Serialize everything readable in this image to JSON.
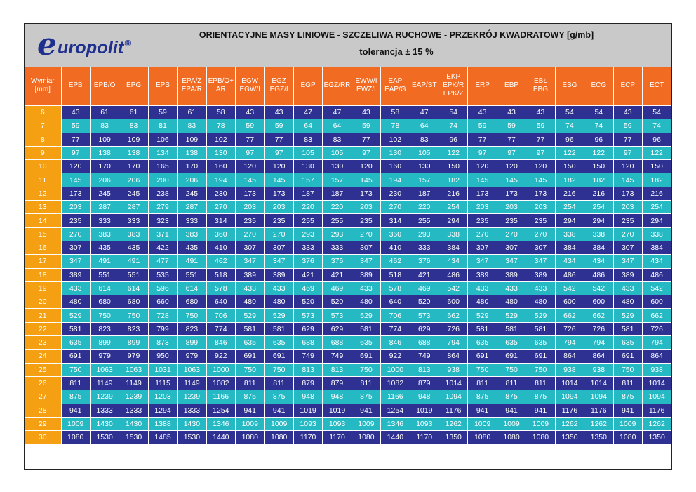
{
  "logo": {
    "letter": "e",
    "word": "uropolit",
    "mark": "®"
  },
  "title": "ORIENTACYJNE MASY LINIOWE - SZCZELIWA RUCHOWE - PRZEKRÓJ KWADRATOWY [g/mb]",
  "subtitle": "tolerancja ± 15 %",
  "colors": {
    "header_bg": "#c9c9c9",
    "column_header": "#f26b22",
    "dimension_cell": "#f5a012",
    "row_dark": "#2e3192",
    "row_light": "#25b9c4",
    "brand": "#1f2f8e"
  },
  "table": {
    "columns": [
      "Wymiar\n[mm]",
      "EPB",
      "EPB/O",
      "EPG",
      "EPS",
      "EPA/Z\nEPA/R",
      "EPB/O+\nAR",
      "EGW\nEGW/I",
      "EGZ\nEGZ/I",
      "EGP",
      "EGZ/RR",
      "EWW/I\nEWZ/I",
      "EAP\nEAP/G",
      "EAP/ST",
      "EKP\nEPK/R\nEPK/Z",
      "ERP",
      "EBP",
      "EBŁ\nEBG",
      "ESG",
      "ECG",
      "ECP",
      "ECT"
    ],
    "rows": [
      [
        "6",
        "43",
        "61",
        "61",
        "59",
        "61",
        "58",
        "43",
        "43",
        "47",
        "47",
        "43",
        "58",
        "47",
        "54",
        "43",
        "43",
        "43",
        "54",
        "54",
        "43",
        "54"
      ],
      [
        "7",
        "59",
        "83",
        "83",
        "81",
        "83",
        "78",
        "59",
        "59",
        "64",
        "64",
        "59",
        "78",
        "64",
        "74",
        "59",
        "59",
        "59",
        "74",
        "74",
        "59",
        "74"
      ],
      [
        "8",
        "77",
        "109",
        "109",
        "106",
        "109",
        "102",
        "77",
        "77",
        "83",
        "83",
        "77",
        "102",
        "83",
        "96",
        "77",
        "77",
        "77",
        "96",
        "96",
        "77",
        "96"
      ],
      [
        "9",
        "97",
        "138",
        "138",
        "134",
        "138",
        "130",
        "97",
        "97",
        "105",
        "105",
        "97",
        "130",
        "105",
        "122",
        "97",
        "97",
        "97",
        "122",
        "122",
        "97",
        "122"
      ],
      [
        "10",
        "120",
        "170",
        "170",
        "165",
        "170",
        "160",
        "120",
        "120",
        "130",
        "130",
        "120",
        "160",
        "130",
        "150",
        "120",
        "120",
        "120",
        "150",
        "150",
        "120",
        "150"
      ],
      [
        "11",
        "145",
        "206",
        "206",
        "200",
        "206",
        "194",
        "145",
        "145",
        "157",
        "157",
        "145",
        "194",
        "157",
        "182",
        "145",
        "145",
        "145",
        "182",
        "182",
        "145",
        "182"
      ],
      [
        "12",
        "173",
        "245",
        "245",
        "238",
        "245",
        "230",
        "173",
        "173",
        "187",
        "187",
        "173",
        "230",
        "187",
        "216",
        "173",
        "173",
        "173",
        "216",
        "216",
        "173",
        "216"
      ],
      [
        "13",
        "203",
        "287",
        "287",
        "279",
        "287",
        "270",
        "203",
        "203",
        "220",
        "220",
        "203",
        "270",
        "220",
        "254",
        "203",
        "203",
        "203",
        "254",
        "254",
        "203",
        "254"
      ],
      [
        "14",
        "235",
        "333",
        "333",
        "323",
        "333",
        "314",
        "235",
        "235",
        "255",
        "255",
        "235",
        "314",
        "255",
        "294",
        "235",
        "235",
        "235",
        "294",
        "294",
        "235",
        "294"
      ],
      [
        "15",
        "270",
        "383",
        "383",
        "371",
        "383",
        "360",
        "270",
        "270",
        "293",
        "293",
        "270",
        "360",
        "293",
        "338",
        "270",
        "270",
        "270",
        "338",
        "338",
        "270",
        "338"
      ],
      [
        "16",
        "307",
        "435",
        "435",
        "422",
        "435",
        "410",
        "307",
        "307",
        "333",
        "333",
        "307",
        "410",
        "333",
        "384",
        "307",
        "307",
        "307",
        "384",
        "384",
        "307",
        "384"
      ],
      [
        "17",
        "347",
        "491",
        "491",
        "477",
        "491",
        "462",
        "347",
        "347",
        "376",
        "376",
        "347",
        "462",
        "376",
        "434",
        "347",
        "347",
        "347",
        "434",
        "434",
        "347",
        "434"
      ],
      [
        "18",
        "389",
        "551",
        "551",
        "535",
        "551",
        "518",
        "389",
        "389",
        "421",
        "421",
        "389",
        "518",
        "421",
        "486",
        "389",
        "389",
        "389",
        "486",
        "486",
        "389",
        "486"
      ],
      [
        "19",
        "433",
        "614",
        "614",
        "596",
        "614",
        "578",
        "433",
        "433",
        "469",
        "469",
        "433",
        "578",
        "469",
        "542",
        "433",
        "433",
        "433",
        "542",
        "542",
        "433",
        "542"
      ],
      [
        "20",
        "480",
        "680",
        "680",
        "660",
        "680",
        "640",
        "480",
        "480",
        "520",
        "520",
        "480",
        "640",
        "520",
        "600",
        "480",
        "480",
        "480",
        "600",
        "600",
        "480",
        "600"
      ],
      [
        "21",
        "529",
        "750",
        "750",
        "728",
        "750",
        "706",
        "529",
        "529",
        "573",
        "573",
        "529",
        "706",
        "573",
        "662",
        "529",
        "529",
        "529",
        "662",
        "662",
        "529",
        "662"
      ],
      [
        "22",
        "581",
        "823",
        "823",
        "799",
        "823",
        "774",
        "581",
        "581",
        "629",
        "629",
        "581",
        "774",
        "629",
        "726",
        "581",
        "581",
        "581",
        "726",
        "726",
        "581",
        "726"
      ],
      [
        "23",
        "635",
        "899",
        "899",
        "873",
        "899",
        "846",
        "635",
        "635",
        "688",
        "688",
        "635",
        "846",
        "688",
        "794",
        "635",
        "635",
        "635",
        "794",
        "794",
        "635",
        "794"
      ],
      [
        "24",
        "691",
        "979",
        "979",
        "950",
        "979",
        "922",
        "691",
        "691",
        "749",
        "749",
        "691",
        "922",
        "749",
        "864",
        "691",
        "691",
        "691",
        "864",
        "864",
        "691",
        "864"
      ],
      [
        "25",
        "750",
        "1063",
        "1063",
        "1031",
        "1063",
        "1000",
        "750",
        "750",
        "813",
        "813",
        "750",
        "1000",
        "813",
        "938",
        "750",
        "750",
        "750",
        "938",
        "938",
        "750",
        "938"
      ],
      [
        "26",
        "811",
        "1149",
        "1149",
        "1115",
        "1149",
        "1082",
        "811",
        "811",
        "879",
        "879",
        "811",
        "1082",
        "879",
        "1014",
        "811",
        "811",
        "811",
        "1014",
        "1014",
        "811",
        "1014"
      ],
      [
        "27",
        "875",
        "1239",
        "1239",
        "1203",
        "1239",
        "1166",
        "875",
        "875",
        "948",
        "948",
        "875",
        "1166",
        "948",
        "1094",
        "875",
        "875",
        "875",
        "1094",
        "1094",
        "875",
        "1094"
      ],
      [
        "28",
        "941",
        "1333",
        "1333",
        "1294",
        "1333",
        "1254",
        "941",
        "941",
        "1019",
        "1019",
        "941",
        "1254",
        "1019",
        "1176",
        "941",
        "941",
        "941",
        "1176",
        "1176",
        "941",
        "1176"
      ],
      [
        "29",
        "1009",
        "1430",
        "1430",
        "1388",
        "1430",
        "1346",
        "1009",
        "1009",
        "1093",
        "1093",
        "1009",
        "1346",
        "1093",
        "1262",
        "1009",
        "1009",
        "1009",
        "1262",
        "1262",
        "1009",
        "1262"
      ],
      [
        "30",
        "1080",
        "1530",
        "1530",
        "1485",
        "1530",
        "1440",
        "1080",
        "1080",
        "1170",
        "1170",
        "1080",
        "1440",
        "1170",
        "1350",
        "1080",
        "1080",
        "1080",
        "1350",
        "1350",
        "1080",
        "1350"
      ]
    ]
  }
}
